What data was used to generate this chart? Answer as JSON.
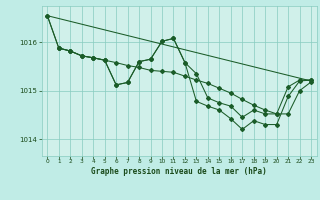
{
  "xlabel": "Graphe pression niveau de la mer (hPa)",
  "bg_color": "#c0ece6",
  "plot_bg_color": "#d0f0ea",
  "line_color": "#1a5c28",
  "grid_color": "#88ccc0",
  "text_color": "#1a4a1a",
  "xlim": [
    -0.5,
    23.5
  ],
  "ylim": [
    1013.65,
    1016.75
  ],
  "yticks": [
    1014,
    1015,
    1016
  ],
  "xticks": [
    0,
    1,
    2,
    3,
    4,
    5,
    6,
    7,
    8,
    9,
    10,
    11,
    12,
    13,
    14,
    15,
    16,
    17,
    18,
    19,
    20,
    21,
    22,
    23
  ],
  "trend_x": [
    0,
    23
  ],
  "trend_y": [
    1016.55,
    1015.2
  ],
  "series_main": {
    "x": [
      0,
      1,
      2,
      3,
      4,
      5,
      6,
      7,
      8,
      9,
      10,
      11,
      12,
      13,
      14,
      15,
      16,
      17,
      18,
      19,
      20,
      21,
      22,
      23
    ],
    "y": [
      1016.55,
      1015.88,
      1015.82,
      1015.72,
      1015.68,
      1015.63,
      1015.12,
      1015.17,
      1015.6,
      1015.65,
      1016.02,
      1016.08,
      1015.58,
      1014.78,
      1014.68,
      1014.6,
      1014.42,
      1014.2,
      1014.38,
      1014.3,
      1014.3,
      1014.88,
      1015.2,
      1015.22
    ]
  },
  "series_upper": {
    "x": [
      0,
      1,
      2,
      3,
      4,
      5,
      6,
      7,
      8,
      9,
      10,
      11,
      12,
      13,
      14,
      15,
      16,
      17,
      18,
      19,
      20,
      21,
      22,
      23
    ],
    "y": [
      1016.55,
      1015.88,
      1015.82,
      1015.72,
      1015.68,
      1015.63,
      1015.12,
      1015.17,
      1015.6,
      1015.65,
      1016.02,
      1016.08,
      1015.58,
      1015.35,
      1014.85,
      1014.75,
      1014.68,
      1014.45,
      1014.6,
      1014.52,
      1014.52,
      1015.08,
      1015.22,
      1015.22
    ]
  },
  "series_smooth": {
    "x": [
      1,
      2,
      3,
      4,
      5,
      6,
      7,
      8,
      9,
      10,
      11,
      12,
      13,
      14,
      15,
      16,
      17,
      18,
      19,
      20,
      21,
      22,
      23
    ],
    "y": [
      1015.88,
      1015.82,
      1015.72,
      1015.68,
      1015.63,
      1015.58,
      1015.52,
      1015.48,
      1015.42,
      1015.4,
      1015.38,
      1015.3,
      1015.22,
      1015.15,
      1015.05,
      1014.95,
      1014.82,
      1014.7,
      1014.6,
      1014.52,
      1014.52,
      1015.0,
      1015.18
    ]
  }
}
